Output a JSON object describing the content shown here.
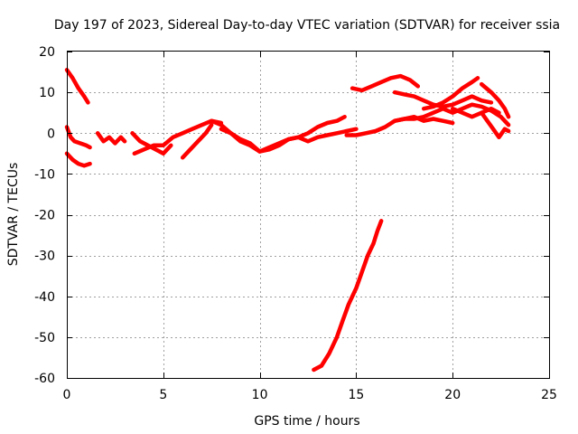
{
  "chart_data": {
    "type": "line",
    "title": "Day 197 of 2023, Sidereal Day-to-day VTEC variation (SDTVAR) for receiver ssia",
    "xlabel": "GPS time / hours",
    "ylabel": "SDTVAR / TECUs",
    "xlim": [
      0,
      25
    ],
    "ylim": [
      -60,
      20
    ],
    "xticks": [
      0,
      5,
      10,
      15,
      20,
      25
    ],
    "yticks": [
      -60,
      -50,
      -40,
      -30,
      -20,
      -10,
      0,
      10,
      20
    ],
    "grid": true,
    "color": "#ff0000",
    "series": [
      {
        "name": "s1",
        "x": [
          0.0,
          0.3,
          0.6,
          0.9,
          1.1
        ],
        "y": [
          15.5,
          13.5,
          11,
          9,
          7.5
        ]
      },
      {
        "name": "s2",
        "x": [
          0.0,
          0.2,
          0.4,
          0.7,
          1.0,
          1.2
        ],
        "y": [
          1.5,
          -1,
          -2,
          -2.5,
          -3,
          -3.5
        ]
      },
      {
        "name": "s3",
        "x": [
          0.0,
          0.3,
          0.6,
          0.9,
          1.2
        ],
        "y": [
          -5,
          -6.5,
          -7.5,
          -8,
          -7.5
        ]
      },
      {
        "name": "s4",
        "x": [
          1.6,
          1.9,
          2.2,
          2.5,
          2.8,
          3.0
        ],
        "y": [
          0,
          -2,
          -1,
          -2.5,
          -1,
          -2
        ]
      },
      {
        "name": "s5",
        "x": [
          3.4,
          3.8,
          4.2,
          4.6,
          5.0,
          5.4
        ],
        "y": [
          0,
          -2,
          -3,
          -4,
          -5,
          -3
        ]
      },
      {
        "name": "s6",
        "x": [
          3.5,
          4.0,
          4.5,
          5.0,
          5.5,
          6.0,
          6.5,
          7.0,
          7.5,
          8.0
        ],
        "y": [
          -5,
          -4,
          -3,
          -3,
          -1,
          0,
          1,
          2,
          3,
          2.5
        ]
      },
      {
        "name": "s7",
        "x": [
          6.0,
          6.4,
          6.8,
          7.2,
          7.5
        ],
        "y": [
          -6,
          -4,
          -2,
          0,
          2
        ]
      },
      {
        "name": "s8",
        "x": [
          7.5,
          8.0,
          8.5,
          9.0,
          9.5,
          10.0,
          10.5,
          11.0,
          11.5,
          12.0,
          12.5,
          13.0,
          13.5,
          14.0,
          14.4
        ],
        "y": [
          3,
          2,
          0,
          -1.5,
          -2.5,
          -4.5,
          -4,
          -3,
          -1.5,
          -1,
          0,
          1.5,
          2.5,
          3,
          4
        ]
      },
      {
        "name": "s9",
        "x": [
          8.0,
          8.5,
          9.0,
          9.5,
          10.0,
          10.5,
          11.0,
          11.5,
          12.0,
          12.5,
          13.0,
          13.5,
          14.0,
          14.5,
          15.0
        ],
        "y": [
          1,
          0,
          -2,
          -3,
          -4.5,
          -3.5,
          -2.5,
          -1.5,
          -1,
          -2,
          -1,
          -0.5,
          0,
          0.5,
          1
        ]
      },
      {
        "name": "s10",
        "x": [
          12.8,
          13.2,
          13.6,
          14.0,
          14.3,
          14.6,
          15.0,
          15.3,
          15.6,
          15.9,
          16.1,
          16.3
        ],
        "y": [
          -58,
          -57,
          -54,
          -50,
          -46,
          -42,
          -38,
          -34,
          -30,
          -27,
          -24,
          -21.5
        ]
      },
      {
        "name": "s11",
        "x": [
          14.8,
          15.3,
          15.8,
          16.3,
          16.8,
          17.3,
          17.8,
          18.2
        ],
        "y": [
          11,
          10.5,
          11.5,
          12.5,
          13.5,
          14,
          13,
          11.5
        ]
      },
      {
        "name": "s12",
        "x": [
          14.5,
          15.0,
          15.5,
          16.0,
          16.5,
          17.0,
          17.5,
          18.0,
          18.5,
          19.0,
          19.5,
          20.0,
          20.5,
          21.0,
          21.5,
          22.0,
          22.5,
          22.9
        ],
        "y": [
          -0.5,
          -0.5,
          0,
          0.5,
          1.5,
          3,
          3.5,
          3.5,
          4,
          5,
          6,
          5,
          6,
          7,
          6.5,
          5.5,
          4,
          2
        ]
      },
      {
        "name": "s13",
        "x": [
          17.0,
          17.5,
          18.0,
          18.5,
          19.0,
          19.5,
          20.0
        ],
        "y": [
          3,
          3.5,
          4,
          3,
          3.5,
          3,
          2.5
        ]
      },
      {
        "name": "s14",
        "x": [
          17.0,
          17.5,
          18.0,
          18.5,
          19.0,
          19.5,
          20.0,
          20.5,
          21.0,
          21.5,
          22.0
        ],
        "y": [
          10,
          9.5,
          9,
          8,
          7,
          6.5,
          7,
          8,
          9,
          8,
          7.5
        ]
      },
      {
        "name": "s15",
        "x": [
          18.5,
          19.0,
          19.5,
          20.0,
          20.5,
          21.0,
          21.3
        ],
        "y": [
          6,
          6.5,
          7.5,
          9,
          11,
          12.5,
          13.5
        ]
      },
      {
        "name": "s16",
        "x": [
          20.0,
          20.5,
          21.0,
          21.5,
          22.0,
          22.4
        ],
        "y": [
          6,
          5,
          4,
          5,
          6,
          5
        ]
      },
      {
        "name": "s17",
        "x": [
          21.5,
          22.0,
          22.4,
          22.7,
          22.9
        ],
        "y": [
          12,
          10,
          8,
          6,
          4
        ]
      },
      {
        "name": "s18",
        "x": [
          21.5,
          21.8,
          22.1,
          22.4,
          22.7,
          22.9
        ],
        "y": [
          5,
          3,
          1,
          -1,
          1,
          0.5
        ]
      }
    ]
  }
}
